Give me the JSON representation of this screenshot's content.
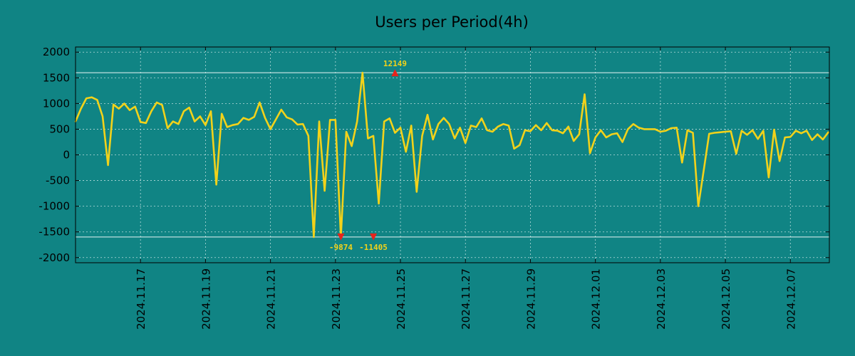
{
  "chart_data": {
    "type": "line",
    "title": "Users per Period(4h)",
    "xlabel": "",
    "ylabel": "",
    "ylim": [
      -2100,
      2100
    ],
    "xlim": [
      0,
      23.2
    ],
    "x_unit": "days since 2024.11.15 00:00",
    "grid": true,
    "legend": "none",
    "y_ticks": [
      2000,
      1500,
      1000,
      500,
      0,
      -500,
      -1000,
      -1500,
      -2000
    ],
    "y_tick_labels": [
      "2000",
      "1500",
      "1000",
      "500",
      "0",
      "-500",
      "-1000",
      "-1500",
      "-2000"
    ],
    "x_ticks": [
      2,
      4,
      6,
      8,
      10,
      12,
      14,
      16,
      18,
      20,
      22
    ],
    "x_tick_labels": [
      "2024.11.17",
      "2024.11.19",
      "2024.11.21",
      "2024.11.23",
      "2024.11.25",
      "2024.11.27",
      "2024.11.29",
      "2024.12.01",
      "2024.12.03",
      "2024.12.05",
      "2024.12.07"
    ],
    "reference_lines": [
      1600,
      -1600
    ],
    "colors": {
      "background": "#108484",
      "line": "#f2d21a",
      "marker": "#e8231c",
      "refline": "#e8f4f4",
      "grid": "#b8dcdc",
      "axis": "#000000"
    },
    "series": [
      {
        "name": "Users",
        "x": [
          0.0,
          0.167,
          0.333,
          0.5,
          0.667,
          0.833,
          1.0,
          1.167,
          1.333,
          1.5,
          1.667,
          1.833,
          2.0,
          2.167,
          2.333,
          2.5,
          2.667,
          2.833,
          3.0,
          3.167,
          3.333,
          3.5,
          3.667,
          3.833,
          4.0,
          4.167,
          4.333,
          4.5,
          4.667,
          4.833,
          5.0,
          5.167,
          5.333,
          5.5,
          5.667,
          5.833,
          6.0,
          6.167,
          6.333,
          6.5,
          6.667,
          6.833,
          7.0,
          7.167,
          7.333,
          7.5,
          7.667,
          7.833,
          8.0,
          8.167,
          8.333,
          8.5,
          8.667,
          8.833,
          9.0,
          9.167,
          9.333,
          9.5,
          9.667,
          9.833,
          10.0,
          10.167,
          10.333,
          10.5,
          10.667,
          10.833,
          11.0,
          11.167,
          11.333,
          11.5,
          11.667,
          11.833,
          12.0,
          12.167,
          12.333,
          12.5,
          12.667,
          12.833,
          13.0,
          13.167,
          13.333,
          13.5,
          13.667,
          13.833,
          14.0,
          14.167,
          14.333,
          14.5,
          14.667,
          14.833,
          15.0,
          15.167,
          15.333,
          15.5,
          15.667,
          15.833,
          16.0,
          16.167,
          16.333,
          16.5,
          16.667,
          16.833,
          17.0,
          17.167,
          17.333,
          17.5,
          17.667,
          17.833,
          18.0,
          18.167,
          18.333,
          18.5,
          18.667,
          18.833,
          19.0,
          19.167,
          19.333,
          19.5,
          19.667,
          19.833,
          20.0,
          20.167,
          20.333,
          20.5,
          20.667,
          20.833,
          21.0,
          21.167,
          21.333,
          21.5,
          21.667,
          21.833,
          22.0,
          22.167,
          22.333,
          22.5,
          22.667,
          22.833,
          23.0,
          23.167
        ],
        "values": [
          650,
          900,
          1100,
          1120,
          1070,
          750,
          -200,
          980,
          900,
          1000,
          870,
          940,
          640,
          620,
          850,
          1020,
          970,
          520,
          650,
          600,
          850,
          920,
          650,
          750,
          580,
          850,
          -580,
          800,
          540,
          580,
          600,
          720,
          680,
          740,
          1020,
          720,
          500,
          690,
          880,
          730,
          690,
          590,
          600,
          370,
          -1600,
          650,
          -700,
          680,
          680,
          -1600,
          450,
          170,
          650,
          1600,
          320,
          370,
          -950,
          650,
          710,
          430,
          530,
          60,
          570,
          -720,
          370,
          780,
          300,
          600,
          720,
          600,
          320,
          530,
          230,
          570,
          540,
          710,
          480,
          450,
          550,
          600,
          570,
          120,
          190,
          480,
          460,
          580,
          480,
          620,
          480,
          470,
          420,
          550,
          270,
          400,
          1180,
          30,
          340,
          480,
          340,
          400,
          420,
          250,
          500,
          600,
          530,
          500,
          500,
          500,
          450,
          470,
          520,
          530,
          -150,
          480,
          430,
          -1000,
          -300,
          410,
          430,
          440,
          450,
          460,
          20,
          470,
          390,
          480,
          310,
          470,
          -440,
          490,
          -120,
          340,
          350,
          470,
          420,
          470,
          290,
          400,
          300,
          440
        ]
      }
    ],
    "annotations": [
      {
        "x": 8.167,
        "y": -1600,
        "label": "-9874",
        "position": "below"
      },
      {
        "x": 9.167,
        "y": -1600,
        "label": "-11405",
        "position": "below"
      },
      {
        "x": 9.833,
        "y": 1600,
        "label": "12149",
        "position": "above"
      }
    ]
  }
}
